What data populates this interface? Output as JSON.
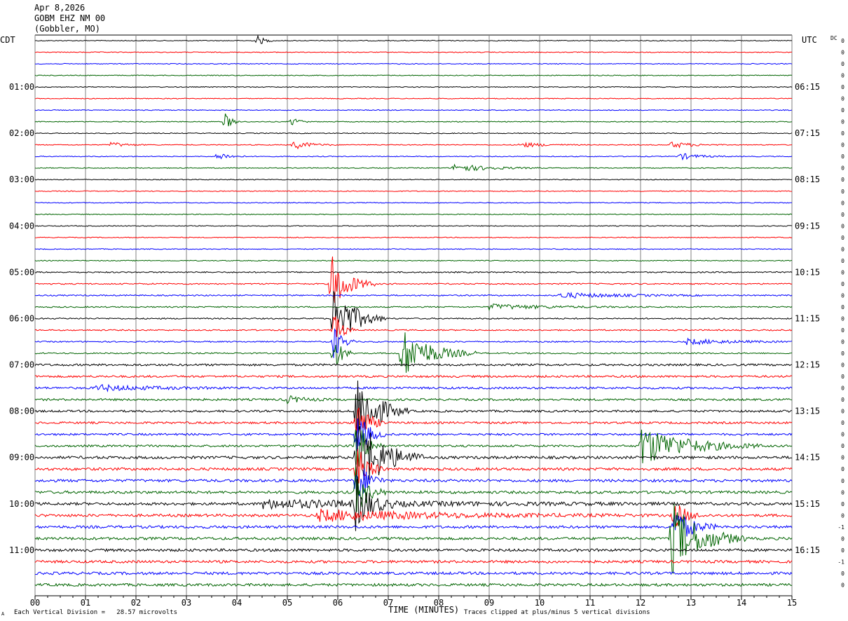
{
  "header": {
    "date": "Apr 8,2026",
    "station": "GOBM EHZ NM 00",
    "location": "(Gobbler, MO)"
  },
  "left_timezone": "CDT",
  "right_timezone": "UTC",
  "dc_label": "DC",
  "footer": {
    "scale_note": "Each Vertical Division =   28.57 microvolts",
    "clip_note": "Traces clipped at plus/minus 5 vertical divisions",
    "corner_mark": "A"
  },
  "chart_data": {
    "type": "line",
    "xlabel": "TIME (MINUTES)",
    "x_ticks": [
      "00",
      "01",
      "02",
      "03",
      "04",
      "05",
      "06",
      "07",
      "08",
      "09",
      "10",
      "11",
      "12",
      "13",
      "14",
      "15"
    ],
    "xlim": [
      0,
      15
    ],
    "trace_count": 48,
    "trace_colors": [
      "#000000",
      "#ff0000",
      "#0000ff",
      "#006400"
    ],
    "left_hour_labels": [
      "01:00",
      "02:00",
      "03:00",
      "04:00",
      "05:00",
      "06:00",
      "07:00",
      "08:00",
      "09:00",
      "10:00",
      "11:00"
    ],
    "right_hour_labels": [
      "06:15",
      "07:15",
      "08:15",
      "09:15",
      "10:15",
      "11:15",
      "12:15",
      "13:15",
      "14:15",
      "15:15",
      "16:15"
    ],
    "dc_offsets": [
      "0",
      "0",
      "0",
      "0",
      "0",
      "0",
      "0",
      "0",
      "0",
      "0",
      "0",
      "0",
      "0",
      "0",
      "0",
      "0",
      "0",
      "0",
      "0",
      "0",
      "0",
      "0",
      "0",
      "0",
      "0",
      "0",
      "0",
      "0",
      "0",
      "0",
      "0",
      "0",
      "0",
      "0",
      "0",
      "0",
      "0",
      "0",
      "0",
      "0",
      "0",
      "0",
      "-1",
      "0",
      "0",
      "-1",
      "0",
      "0"
    ],
    "events": [
      {
        "trace": 0,
        "minute": 4.4,
        "amplitude": 8,
        "duration": 0.12
      },
      {
        "trace": 7,
        "minute": 3.75,
        "amplitude": 14,
        "duration": 0.12
      },
      {
        "trace": 7,
        "minute": 5.08,
        "amplitude": 8,
        "duration": 0.12
      },
      {
        "trace": 9,
        "minute": 1.5,
        "amplitude": 4,
        "duration": 0.25
      },
      {
        "trace": 9,
        "minute": 5.1,
        "amplitude": 7,
        "duration": 0.3
      },
      {
        "trace": 9,
        "minute": 9.6,
        "amplitude": 4,
        "duration": 0.4
      },
      {
        "trace": 9,
        "minute": 12.6,
        "amplitude": 5,
        "duration": 0.35
      },
      {
        "trace": 10,
        "minute": 3.6,
        "amplitude": 7,
        "duration": 0.2
      },
      {
        "trace": 10,
        "minute": 12.75,
        "amplitude": 5,
        "duration": 0.35
      },
      {
        "trace": 11,
        "minute": 8.3,
        "amplitude": 6,
        "duration": 0.6
      },
      {
        "trace": 21,
        "minute": 5.85,
        "amplitude": 45,
        "duration": 0.3
      },
      {
        "trace": 22,
        "minute": 10.4,
        "amplitude": 4,
        "duration": 1.0
      },
      {
        "trace": 23,
        "minute": 9.0,
        "amplitude": 4,
        "duration": 1.0
      },
      {
        "trace": 24,
        "minute": 5.9,
        "amplitude": 55,
        "duration": 0.35
      },
      {
        "trace": 25,
        "minute": 5.9,
        "amplitude": 30,
        "duration": 0.15
      },
      {
        "trace": 26,
        "minute": 5.9,
        "amplitude": 30,
        "duration": 0.15
      },
      {
        "trace": 26,
        "minute": 12.9,
        "amplitude": 4,
        "duration": 0.8
      },
      {
        "trace": 27,
        "minute": 5.9,
        "amplitude": 30,
        "duration": 0.15
      },
      {
        "trace": 27,
        "minute": 7.25,
        "amplitude": 40,
        "duration": 0.5
      },
      {
        "trace": 30,
        "minute": 1.2,
        "amplitude": 4,
        "duration": 1.0
      },
      {
        "trace": 31,
        "minute": 4.95,
        "amplitude": 6,
        "duration": 0.3
      },
      {
        "trace": 32,
        "minute": 6.35,
        "amplitude": 65,
        "duration": 0.35
      },
      {
        "trace": 33,
        "minute": 6.35,
        "amplitude": 40,
        "duration": 0.2
      },
      {
        "trace": 34,
        "minute": 6.35,
        "amplitude": 40,
        "duration": 0.2
      },
      {
        "trace": 35,
        "minute": 6.35,
        "amplitude": 40,
        "duration": 0.2
      },
      {
        "trace": 35,
        "minute": 12.0,
        "amplitude": 30,
        "duration": 0.8
      },
      {
        "trace": 36,
        "minute": 6.35,
        "amplitude": 70,
        "duration": 0.45
      },
      {
        "trace": 37,
        "minute": 6.35,
        "amplitude": 40,
        "duration": 0.2
      },
      {
        "trace": 38,
        "minute": 6.35,
        "amplitude": 40,
        "duration": 0.2
      },
      {
        "trace": 39,
        "minute": 6.35,
        "amplitude": 40,
        "duration": 0.2
      },
      {
        "trace": 40,
        "minute": 6.35,
        "amplitude": 40,
        "duration": 0.25
      },
      {
        "trace": 40,
        "minute": 4.5,
        "amplitude": 6,
        "duration": 3.0
      },
      {
        "trace": 41,
        "minute": 5.6,
        "amplitude": 8,
        "duration": 2.2
      },
      {
        "trace": 43,
        "minute": 12.6,
        "amplitude": 55,
        "duration": 0.5
      },
      {
        "trace": 42,
        "minute": 12.65,
        "amplitude": 30,
        "duration": 0.3
      },
      {
        "trace": 41,
        "minute": 12.65,
        "amplitude": 25,
        "duration": 0.2
      }
    ]
  }
}
